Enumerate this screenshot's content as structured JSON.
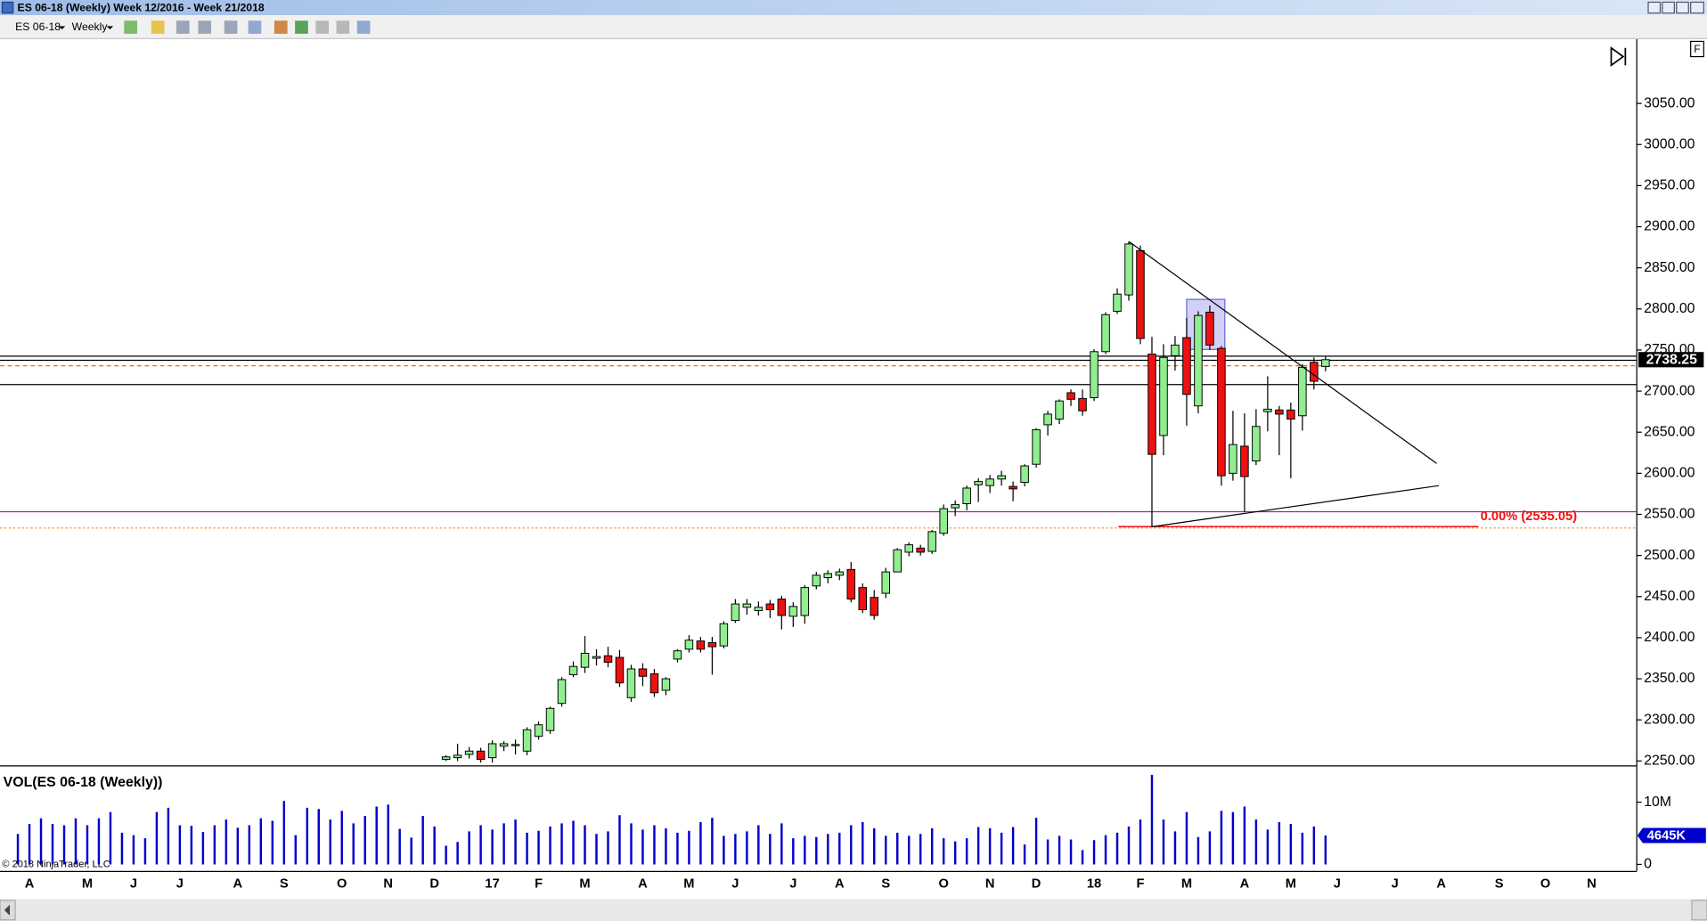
{
  "window": {
    "title": "ES 06-18 (Weekly) Week 12/2016 - Week 21/2018",
    "instrument": "ES 06-18",
    "interval": "Weekly",
    "copyright": "© 2018 NinjaTrader, LLC",
    "corner_label": "F"
  },
  "chart_data": [
    {
      "type": "candlestick",
      "categories": [
        null,
        "A",
        null,
        null,
        null,
        null,
        "M",
        null,
        null,
        null,
        "J",
        null,
        null,
        null,
        "J",
        null,
        null,
        null,
        null,
        "A",
        null,
        null,
        null,
        "S",
        null,
        null,
        null,
        null,
        "O",
        null,
        null,
        null,
        "N",
        null,
        null,
        null,
        "D",
        null,
        null,
        null,
        null,
        "17",
        null,
        null,
        null,
        "F",
        null,
        null,
        null,
        "M",
        null,
        null,
        null,
        null,
        "A",
        null,
        null,
        null,
        "M",
        null,
        null,
        null,
        "J",
        null,
        null,
        null,
        null,
        "J",
        null,
        null,
        null,
        "A",
        null,
        null,
        null,
        "S",
        null,
        null,
        null,
        null,
        "O",
        null,
        null,
        null,
        "N",
        null,
        null,
        null,
        "D",
        null,
        null,
        null,
        null,
        "18",
        null,
        null,
        null,
        "F",
        null,
        null,
        null,
        "M",
        null,
        null,
        null,
        null,
        "A",
        null,
        null,
        null,
        "M",
        null,
        null,
        null,
        "J",
        null,
        null,
        null,
        null,
        "J",
        null,
        null,
        null,
        "A",
        null,
        null,
        null,
        null,
        "S",
        null,
        null,
        null,
        "O",
        null,
        null,
        null,
        "N",
        null,
        null,
        null
      ],
      "open": [
        null,
        null,
        null,
        null,
        null,
        null,
        null,
        null,
        null,
        null,
        null,
        null,
        null,
        null,
        null,
        null,
        null,
        null,
        null,
        null,
        null,
        null,
        null,
        null,
        null,
        null,
        null,
        null,
        null,
        null,
        null,
        null,
        null,
        null,
        null,
        null,
        null,
        2252,
        2254,
        2258,
        2262,
        2254,
        2268,
        2269,
        2262,
        2280,
        2287,
        2320,
        2355,
        2364,
        2375,
        2378,
        2376,
        2327,
        2362,
        2356,
        2336,
        2374,
        2386,
        2396,
        2394,
        2390,
        2421,
        2437,
        2433,
        2441,
        2447,
        2426,
        2427,
        2463,
        2473,
        2476,
        2483,
        2461,
        2449,
        2454,
        2480,
        2504,
        2509,
        2505,
        2527,
        2558,
        2563,
        2586,
        2585,
        2593,
        2584,
        2589,
        2611,
        2659,
        2666,
        2698,
        2691,
        2692,
        2748,
        2797,
        2817,
        2871,
        2745,
        2646,
        2743,
        2765,
        2682,
        2796,
        2752,
        2600,
        2633,
        2615,
        2675,
        2677,
        2677,
        2670,
        2735,
        2730,
        null,
        null,
        null,
        null,
        null,
        null,
        null,
        null,
        null,
        null,
        null,
        null,
        null,
        null,
        null,
        null,
        null,
        null,
        null,
        null,
        null,
        null,
        null,
        null,
        null,
        null
      ],
      "high": [
        null,
        null,
        null,
        null,
        null,
        null,
        null,
        null,
        null,
        null,
        null,
        null,
        null,
        null,
        null,
        null,
        null,
        null,
        null,
        null,
        null,
        null,
        null,
        null,
        null,
        null,
        null,
        null,
        null,
        null,
        null,
        null,
        null,
        null,
        null,
        null,
        null,
        2257,
        2271,
        2267,
        2266,
        2275,
        2274,
        2276,
        2291,
        2298,
        2316,
        2352,
        2371,
        2402,
        2386,
        2389,
        2385,
        2367,
        2369,
        2362,
        2352,
        2386,
        2403,
        2401,
        2401,
        2420,
        2447,
        2447,
        2444,
        2446,
        2451,
        2443,
        2464,
        2480,
        2482,
        2484,
        2492,
        2466,
        2458,
        2485,
        2509,
        2516,
        2513,
        2531,
        2562,
        2567,
        2585,
        2594,
        2598,
        2603,
        2590,
        2611,
        2655,
        2676,
        2690,
        2702,
        2702,
        2751,
        2796,
        2825,
        2882,
        2877,
        2766,
        2757,
        2767,
        2789,
        2797,
        2804,
        2755,
        2676,
        2673,
        2678,
        2718,
        2682,
        2686,
        2733,
        2741,
        2742,
        null,
        null,
        null,
        null,
        null,
        null,
        null,
        null,
        null,
        null,
        null,
        null,
        null,
        null,
        null,
        null,
        null,
        null,
        null,
        null,
        null,
        null,
        null,
        null,
        null,
        null
      ],
      "low": [
        null,
        null,
        null,
        null,
        null,
        null,
        null,
        null,
        null,
        null,
        null,
        null,
        null,
        null,
        null,
        null,
        null,
        null,
        null,
        null,
        null,
        null,
        null,
        null,
        null,
        null,
        null,
        null,
        null,
        null,
        null,
        null,
        null,
        null,
        null,
        null,
        null,
        2250,
        2250,
        2253,
        2248,
        2248,
        2262,
        2258,
        2257,
        2276,
        2283,
        2316,
        2352,
        2357,
        2366,
        2364,
        2340,
        2322,
        2341,
        2328,
        2330,
        2370,
        2382,
        2382,
        2355,
        2387,
        2418,
        2428,
        2427,
        2424,
        2410,
        2413,
        2417,
        2459,
        2466,
        2470,
        2443,
        2430,
        2422,
        2448,
        2480,
        2499,
        2500,
        2502,
        2524,
        2548,
        2555,
        2565,
        2576,
        2585,
        2566,
        2584,
        2607,
        2646,
        2660,
        2682,
        2670,
        2688,
        2745,
        2794,
        2810,
        2757,
        2535,
        2622,
        2725,
        2658,
        2673,
        2750,
        2585,
        2591,
        2553,
        2610,
        2651,
        2622,
        2594,
        2652,
        2702,
        2724,
        null,
        null,
        null,
        null,
        null,
        null,
        null,
        null,
        null,
        null,
        null,
        null,
        null,
        null,
        null,
        null,
        null,
        null,
        null,
        null,
        null,
        null,
        null,
        null,
        null,
        null
      ],
      "close": [
        null,
        null,
        null,
        null,
        null,
        null,
        null,
        null,
        null,
        null,
        null,
        null,
        null,
        null,
        null,
        null,
        null,
        null,
        null,
        null,
        null,
        null,
        null,
        null,
        null,
        null,
        null,
        null,
        null,
        null,
        null,
        null,
        null,
        null,
        null,
        null,
        null,
        2255,
        2257,
        2262,
        2252,
        2271,
        2271,
        2270,
        2288,
        2294,
        2314,
        2349,
        2365,
        2381,
        2377,
        2370,
        2345,
        2362,
        2353,
        2333,
        2350,
        2384,
        2397,
        2386,
        2389,
        2417,
        2441,
        2441,
        2437,
        2434,
        2427,
        2438,
        2461,
        2476,
        2478,
        2480,
        2447,
        2434,
        2427,
        2480,
        2507,
        2513,
        2504,
        2529,
        2557,
        2562,
        2582,
        2590,
        2593,
        2597,
        2581,
        2609,
        2653,
        2672,
        2688,
        2690,
        2676,
        2748,
        2793,
        2818,
        2879,
        2764,
        2623,
        2741,
        2756,
        2696,
        2792,
        2756,
        2597,
        2635,
        2596,
        2657,
        2678,
        2672,
        2666,
        2729,
        2712,
        2738.25,
        null,
        null,
        null,
        null,
        null,
        null,
        null,
        null,
        null,
        null,
        null,
        null,
        null,
        null,
        null,
        null,
        null,
        null,
        null,
        null,
        null,
        null,
        null,
        null,
        null,
        null
      ],
      "up_color": "#90ee90",
      "down_color": "#ee1111",
      "ylim": [
        2244.7,
        3125.5
      ],
      "yticks": [
        {
          "value": 2250,
          "label": "2250.00"
        },
        {
          "value": 2300,
          "label": "2300.00"
        },
        {
          "value": 2350,
          "label": "2350.00"
        },
        {
          "value": 2400,
          "label": "2400.00"
        },
        {
          "value": 2450,
          "label": "2450.00"
        },
        {
          "value": 2500,
          "label": "2500.00"
        },
        {
          "value": 2550,
          "label": "2550.00"
        },
        {
          "value": 2600,
          "label": "2600.00"
        },
        {
          "value": 2650,
          "label": "2650.00"
        },
        {
          "value": 2700,
          "label": "2700.00"
        },
        {
          "value": 2750,
          "label": "2750.00"
        },
        {
          "value": 2800,
          "label": "2800.00"
        },
        {
          "value": 2850,
          "label": "2850.00"
        },
        {
          "value": 2900,
          "label": "2900.00"
        },
        {
          "value": 2950,
          "label": "2950.00"
        },
        {
          "value": 3000,
          "label": "3000.00"
        },
        {
          "value": 3050,
          "label": "3050.00"
        }
      ],
      "grid": false,
      "last_price": 2738.25,
      "horizontal_lines": [
        {
          "value": 2742.5,
          "color": "#000000",
          "style": "solid"
        },
        {
          "value": 2737.5,
          "color": "#000000",
          "style": "solid"
        },
        {
          "value": 2730.8,
          "color": "#ff6a00",
          "style": "dashed"
        },
        {
          "value": 2708,
          "color": "#000000",
          "style": "solid"
        },
        {
          "value": 2553.3,
          "color": "#a020a0",
          "style": "solid"
        },
        {
          "value": 2533.4,
          "color": "#ff8c1a",
          "style": "dotted"
        }
      ],
      "trendlines": [
        {
          "x": [
            96,
            122.6
          ],
          "y": [
            2882,
            2612
          ],
          "color": "#000000"
        },
        {
          "x": [
            98,
            122.8
          ],
          "y": [
            2535,
            2585
          ],
          "color": "#000000"
        }
      ],
      "rectangles": [
        {
          "x": [
            101,
            104.3
          ],
          "y": [
            2811.6,
            2750.7
          ],
          "color": "#6666dd"
        }
      ],
      "fib": {
        "level": 2535.05,
        "label": "0.00% (2535.05)",
        "x": [
          95.1,
          126.2
        ],
        "color": "#ee1111"
      }
    },
    {
      "type": "bar",
      "title": "VOL(ES 06-18 (Weekly))",
      "values": [
        4900000,
        6500000,
        7400000,
        6500000,
        6300000,
        7400000,
        6300000,
        7400000,
        8400000,
        5100000,
        4700000,
        4200000,
        8400000,
        9100000,
        6300000,
        6200000,
        5200000,
        6300000,
        7200000,
        5900000,
        6300000,
        7400000,
        7000000,
        10200000,
        4700000,
        9100000,
        8900000,
        7200000,
        8600000,
        6600000,
        7800000,
        9300000,
        9600000,
        5700000,
        4300000,
        7800000,
        6100000,
        3000000,
        3600000,
        5300000,
        6300000,
        5600000,
        6600000,
        7200000,
        5100000,
        5400000,
        6100000,
        6600000,
        7000000,
        6300000,
        4900000,
        5300000,
        7900000,
        6600000,
        5600000,
        6300000,
        5800000,
        5100000,
        5400000,
        6800000,
        7500000,
        4600000,
        4900000,
        5300000,
        6300000,
        4900000,
        6600000,
        4200000,
        4600000,
        4400000,
        4900000,
        5100000,
        6300000,
        6800000,
        5800000,
        4600000,
        5100000,
        4600000,
        4900000,
        5800000,
        4200000,
        3700000,
        4200000,
        6000000,
        5800000,
        5100000,
        6000000,
        3200000,
        7500000,
        4000000,
        4600000,
        4000000,
        2300000,
        3900000,
        4700000,
        5100000,
        6100000,
        7200000,
        14400000,
        7200000,
        5300000,
        8400000,
        4400000,
        5300000,
        8600000,
        8400000,
        9300000,
        7200000,
        5600000,
        6800000,
        6500000,
        5100000,
        6100000,
        4645000,
        null,
        null,
        null,
        null,
        null,
        null,
        null,
        null,
        null,
        null,
        null,
        null,
        null,
        null,
        null,
        null,
        null,
        null,
        null,
        null,
        null,
        null,
        null,
        null,
        null,
        null
      ],
      "value_labels": [
        null,
        null,
        null,
        null,
        null,
        null,
        null,
        null,
        null,
        null,
        null,
        null,
        null,
        null,
        null,
        null,
        null,
        null,
        null,
        null,
        null,
        null,
        null,
        null,
        null,
        null,
        null,
        null,
        null,
        null,
        null,
        null,
        null,
        null,
        null,
        null,
        null,
        null,
        null,
        null,
        null,
        null,
        null,
        null,
        null,
        null,
        null,
        null,
        null,
        null,
        null,
        null,
        null,
        null,
        null,
        null,
        null,
        null,
        null,
        null,
        null,
        null,
        null,
        null,
        null,
        null,
        null,
        null,
        null,
        null,
        null,
        null,
        null,
        null,
        null,
        null,
        null,
        null,
        null,
        null,
        null,
        null,
        null,
        null,
        null,
        null,
        null,
        null,
        null,
        null,
        null,
        null,
        null,
        null,
        null,
        null,
        null,
        null,
        null,
        null,
        null,
        null,
        null,
        null,
        null,
        null,
        null,
        null,
        null,
        null,
        null,
        null,
        null,
        "4645K",
        null,
        null,
        null,
        null,
        null,
        null,
        null,
        null,
        null,
        null,
        null,
        null,
        null,
        null,
        null,
        null,
        null,
        null,
        null,
        null,
        null,
        null,
        null,
        null,
        null,
        null
      ],
      "color": "#0000cc",
      "ylim": [
        -1050000,
        15400000
      ],
      "yticks": [
        {
          "value": 10000000,
          "label": "10M"
        },
        0
      ]
    }
  ]
}
